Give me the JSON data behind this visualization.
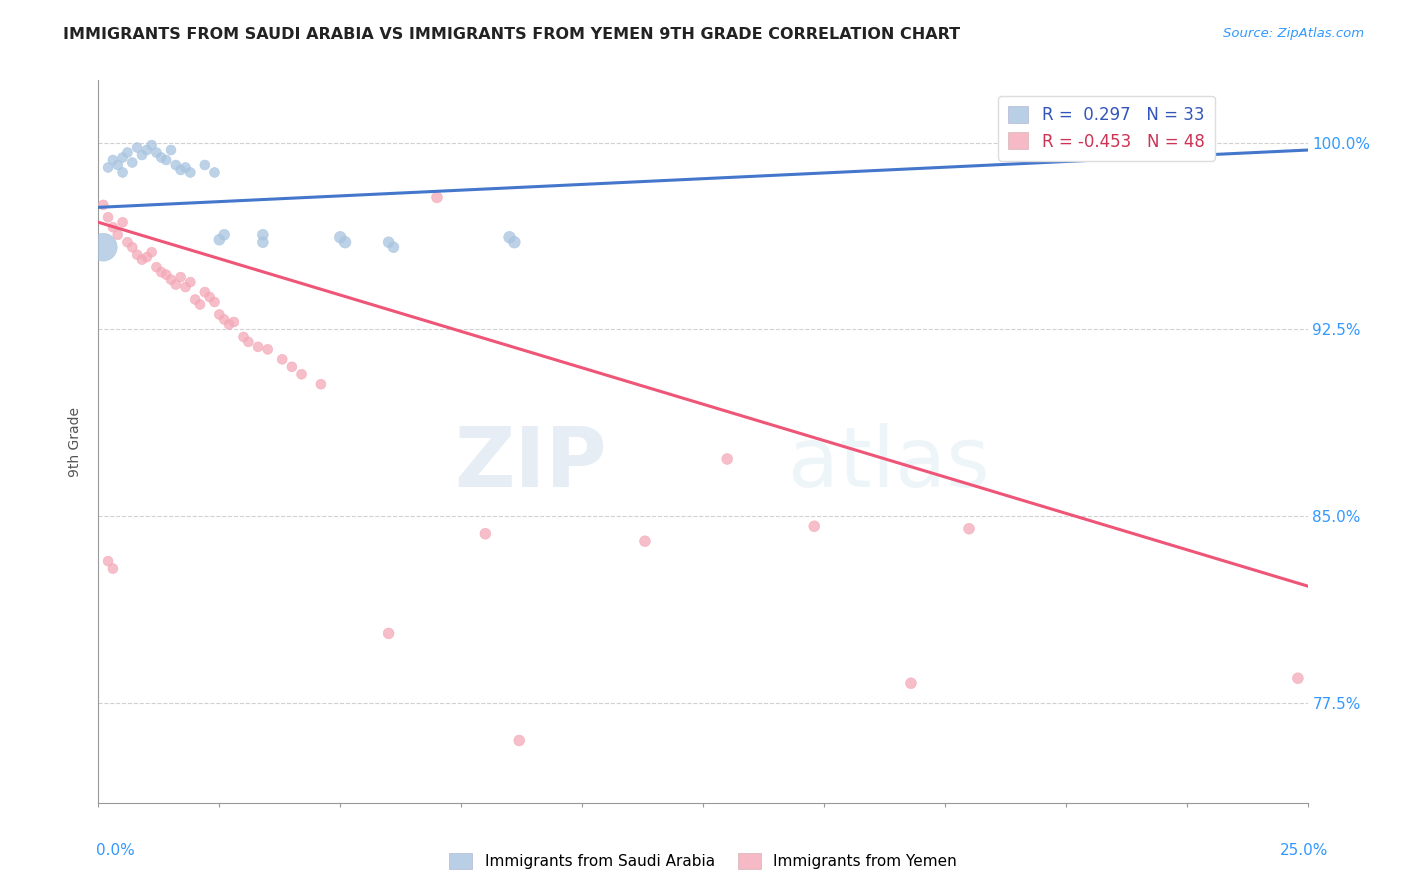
{
  "title": "IMMIGRANTS FROM SAUDI ARABIA VS IMMIGRANTS FROM YEMEN 9TH GRADE CORRELATION CHART",
  "source": "Source: ZipAtlas.com",
  "ylabel": "9th Grade",
  "ylabel_ticks": [
    "100.0%",
    "92.5%",
    "85.0%",
    "77.5%"
  ],
  "ylabel_tick_values": [
    1.0,
    0.925,
    0.85,
    0.775
  ],
  "xlim": [
    0.0,
    0.25
  ],
  "ylim": [
    0.735,
    1.025
  ],
  "legend_blue_r": "0.297",
  "legend_blue_n": "33",
  "legend_pink_r": "-0.453",
  "legend_pink_n": "48",
  "blue_color": "#a8c4e0",
  "pink_color": "#f4a8b8",
  "blue_line_color": "#4477cc",
  "pink_line_color": "#ee5577",
  "watermark_zip": "ZIP",
  "watermark_atlas": "atlas",
  "blue_scatter": [
    [
      0.002,
      0.99
    ],
    [
      0.003,
      0.993
    ],
    [
      0.004,
      0.991
    ],
    [
      0.005,
      0.994
    ],
    [
      0.005,
      0.988
    ],
    [
      0.006,
      0.996
    ],
    [
      0.007,
      0.992
    ],
    [
      0.008,
      0.998
    ],
    [
      0.009,
      0.995
    ],
    [
      0.01,
      0.997
    ],
    [
      0.011,
      0.999
    ],
    [
      0.012,
      0.996
    ],
    [
      0.013,
      0.994
    ],
    [
      0.014,
      0.993
    ],
    [
      0.015,
      0.997
    ],
    [
      0.016,
      0.991
    ],
    [
      0.017,
      0.989
    ],
    [
      0.018,
      0.99
    ],
    [
      0.019,
      0.988
    ],
    [
      0.022,
      0.991
    ],
    [
      0.024,
      0.988
    ],
    [
      0.025,
      0.961
    ],
    [
      0.026,
      0.963
    ],
    [
      0.034,
      0.963
    ],
    [
      0.034,
      0.96
    ],
    [
      0.05,
      0.962
    ],
    [
      0.051,
      0.96
    ],
    [
      0.001,
      0.958
    ],
    [
      0.06,
      0.96
    ],
    [
      0.061,
      0.958
    ],
    [
      0.085,
      0.962
    ],
    [
      0.086,
      0.96
    ],
    [
      0.205,
      0.999
    ]
  ],
  "blue_scatter_sizes": [
    50,
    50,
    50,
    50,
    50,
    50,
    50,
    50,
    50,
    50,
    50,
    50,
    50,
    50,
    50,
    50,
    50,
    50,
    50,
    50,
    50,
    60,
    60,
    60,
    60,
    70,
    70,
    400,
    60,
    60,
    70,
    70,
    70
  ],
  "pink_scatter": [
    [
      0.001,
      0.975
    ],
    [
      0.002,
      0.97
    ],
    [
      0.003,
      0.966
    ],
    [
      0.004,
      0.963
    ],
    [
      0.005,
      0.968
    ],
    [
      0.006,
      0.96
    ],
    [
      0.007,
      0.958
    ],
    [
      0.008,
      0.955
    ],
    [
      0.009,
      0.953
    ],
    [
      0.01,
      0.954
    ],
    [
      0.011,
      0.956
    ],
    [
      0.012,
      0.95
    ],
    [
      0.013,
      0.948
    ],
    [
      0.014,
      0.947
    ],
    [
      0.015,
      0.945
    ],
    [
      0.016,
      0.943
    ],
    [
      0.017,
      0.946
    ],
    [
      0.018,
      0.942
    ],
    [
      0.019,
      0.944
    ],
    [
      0.02,
      0.937
    ],
    [
      0.021,
      0.935
    ],
    [
      0.022,
      0.94
    ],
    [
      0.023,
      0.938
    ],
    [
      0.024,
      0.936
    ],
    [
      0.025,
      0.931
    ],
    [
      0.026,
      0.929
    ],
    [
      0.027,
      0.927
    ],
    [
      0.028,
      0.928
    ],
    [
      0.03,
      0.922
    ],
    [
      0.031,
      0.92
    ],
    [
      0.033,
      0.918
    ],
    [
      0.035,
      0.917
    ],
    [
      0.038,
      0.913
    ],
    [
      0.04,
      0.91
    ],
    [
      0.042,
      0.907
    ],
    [
      0.046,
      0.903
    ],
    [
      0.002,
      0.832
    ],
    [
      0.003,
      0.829
    ],
    [
      0.07,
      0.978
    ],
    [
      0.13,
      0.873
    ],
    [
      0.148,
      0.846
    ],
    [
      0.18,
      0.845
    ],
    [
      0.08,
      0.843
    ],
    [
      0.113,
      0.84
    ],
    [
      0.168,
      0.783
    ],
    [
      0.248,
      0.785
    ],
    [
      0.087,
      0.76
    ],
    [
      0.06,
      0.803
    ]
  ],
  "pink_scatter_sizes": [
    50,
    50,
    50,
    50,
    50,
    50,
    50,
    50,
    50,
    50,
    50,
    50,
    50,
    50,
    50,
    50,
    50,
    50,
    50,
    50,
    50,
    50,
    50,
    50,
    50,
    50,
    50,
    50,
    50,
    50,
    50,
    50,
    50,
    50,
    50,
    50,
    50,
    50,
    60,
    60,
    60,
    60,
    60,
    60,
    60,
    60,
    60,
    60
  ],
  "blue_trend_x": [
    0.0,
    0.25
  ],
  "blue_trend_y": [
    0.974,
    0.997
  ],
  "pink_trend_x": [
    0.0,
    0.25
  ],
  "pink_trend_y": [
    0.968,
    0.822
  ]
}
